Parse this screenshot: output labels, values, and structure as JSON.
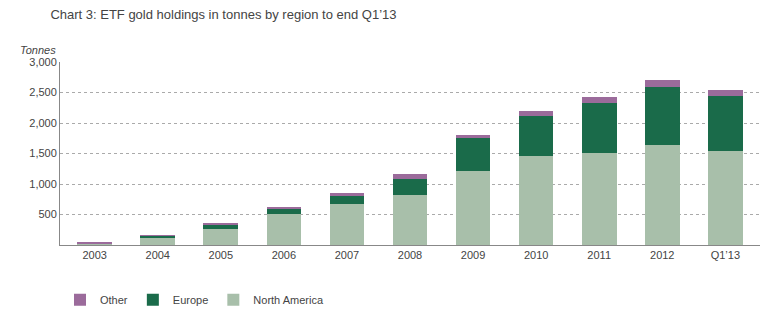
{
  "chart_data": {
    "type": "bar",
    "stacked": true,
    "title": "Chart 3: ETF gold holdings in tonnes by region to end Q1’13",
    "ylabel": "Tonnes",
    "categories": [
      "2003",
      "2004",
      "2005",
      "2006",
      "2007",
      "2008",
      "2009",
      "2010",
      "2011",
      "2012",
      "Q1’13"
    ],
    "series": [
      {
        "name": "North America",
        "color": "#a8bfaa",
        "values": [
          20,
          130,
          270,
          510,
          680,
          820,
          1220,
          1460,
          1510,
          1640,
          1540
        ]
      },
      {
        "name": "Europe",
        "color": "#1a6b4a",
        "values": [
          0,
          20,
          65,
          95,
          130,
          270,
          530,
          660,
          810,
          950,
          900
        ]
      },
      {
        "name": "Other",
        "color": "#9b6b9b",
        "values": [
          15,
          5,
          15,
          10,
          50,
          80,
          60,
          80,
          110,
          110,
          100
        ]
      }
    ],
    "ylim": [
      0,
      3000
    ],
    "yticks": [
      500,
      {
        "value": 1000,
        "label": "1,000"
      },
      {
        "value": 1500,
        "label": "1,500"
      },
      {
        "value": 2000,
        "label": "2,000"
      },
      {
        "value": 2500,
        "label": "2,500"
      },
      {
        "value": 3000,
        "label": "3,000"
      }
    ],
    "grid": true,
    "legend": "bottom"
  }
}
